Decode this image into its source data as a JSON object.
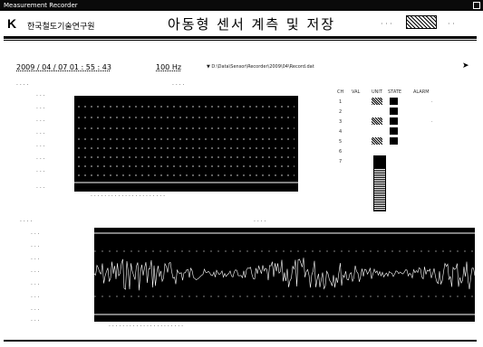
{
  "window": {
    "title": "Measurement Recorder",
    "close_label": ""
  },
  "header": {
    "logo": "K",
    "org_name": "한국철도기술연구원",
    "app_title": "아동형 센서 계측 및 저장",
    "dots_left": "· · ·",
    "dots_right": "· ·"
  },
  "status": {
    "datetime": "2009 / 04 / 07 01 : 55 : 43",
    "frequency": "100 Hz",
    "path": "▼ D:\\Data\\Sensor\\Recorder\\2009\\04\\Record.dat",
    "export_icon": "arrow-icon"
  },
  "panels": {
    "top_left_label": "· · · ·",
    "top_chart_label": "· · · ·",
    "bottom_left_label": "· · · ·",
    "bottom_chart_label": "· · · ·"
  },
  "channel_table": {
    "headers": [
      "CH",
      "VAL",
      "UNIT",
      "STATE",
      "ALARM"
    ],
    "rows": [
      [
        "1",
        "·",
        "·",
        "·",
        "·"
      ],
      [
        "2",
        "·",
        "·",
        "·",
        "·"
      ],
      [
        "3",
        "·",
        "·",
        "·",
        "·"
      ],
      [
        "4",
        "·",
        "·",
        "·",
        "·"
      ],
      [
        "5",
        "·",
        "·",
        "·",
        "·"
      ],
      [
        "6",
        "·",
        "·",
        "·",
        "·"
      ],
      [
        "7",
        "·",
        "·",
        "·",
        "·"
      ]
    ]
  },
  "colors": {
    "background": "#ffffff",
    "plot": "#000000",
    "trace": "#ffffff"
  }
}
